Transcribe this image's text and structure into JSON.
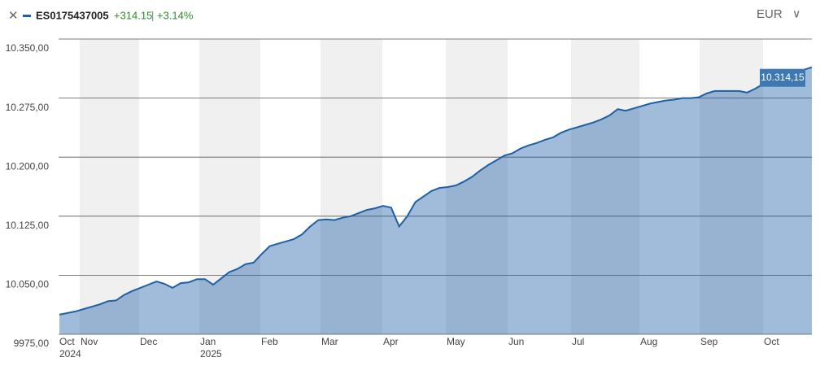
{
  "chart_data": {
    "type": "area",
    "series": [
      {
        "name": "ES0175437005",
        "color": "#1f5fa6",
        "values": [
          10000,
          10002,
          10004,
          10007,
          10010,
          10013,
          10017,
          10018,
          10025,
          10030,
          10034,
          10038,
          10042,
          10039,
          10034,
          10040,
          10041,
          10045,
          10045,
          10038,
          10046,
          10054,
          10058,
          10064,
          10066,
          10077,
          10087,
          10090,
          10093,
          10096,
          10102,
          10112,
          10120,
          10121,
          10120,
          10123,
          10125,
          10129,
          10133,
          10135,
          10138,
          10136,
          10112,
          10125,
          10143,
          10150,
          10157,
          10161,
          10162,
          10164,
          10169,
          10175,
          10183,
          10190,
          10196,
          10202,
          10205,
          10211,
          10215,
          10218,
          10222,
          10225,
          10231,
          10235,
          10238,
          10241,
          10244,
          10248,
          10253,
          10261,
          10259,
          10262,
          10265,
          10268,
          10270,
          10272,
          10273,
          10275,
          10275,
          10276,
          10281,
          10284,
          10284,
          10284,
          10284,
          10282,
          10287,
          10293,
          10297,
          10301,
          10305,
          10307,
          10311,
          10314.15
        ]
      }
    ],
    "change": "+314.15",
    "change_pct": "+3.14%",
    "currency": "EUR",
    "last_value_label": "10.314,15",
    "ylim": [
      9975,
      10350
    ],
    "yticks": [
      {
        "value": 9975,
        "label": "9975,00"
      },
      {
        "value": 10050,
        "label": "10.050,00"
      },
      {
        "value": 10125,
        "label": "10.125,00"
      },
      {
        "value": 10200,
        "label": "10.200,00"
      },
      {
        "value": 10275,
        "label": "10.275,00"
      },
      {
        "value": 10350,
        "label": "10.350,00"
      }
    ],
    "x_labels": [
      "Oct",
      "Nov",
      "Dec",
      "Jan",
      "Feb",
      "Mar",
      "Apr",
      "May",
      "Jun",
      "Jul",
      "Aug",
      "Sep",
      "Oct"
    ],
    "year_labels": [
      "2024",
      null,
      null,
      "2025",
      null,
      null,
      null,
      null,
      null,
      null,
      null,
      null,
      null
    ],
    "grid": true
  }
}
